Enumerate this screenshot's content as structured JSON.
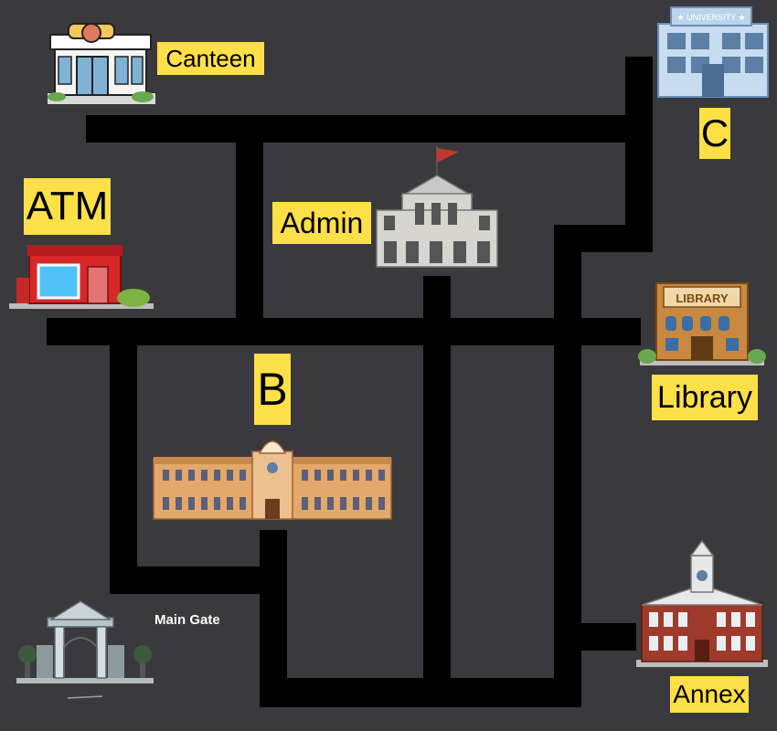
{
  "map": {
    "background": "#3a393d",
    "road_color": "#000000",
    "label_color": "#fde047"
  },
  "places": {
    "canteen": "Canteen",
    "atm": "ATM",
    "admin": "Admin",
    "university": "C",
    "library": "Library",
    "b_building": "B",
    "main_gate": "Main Gate",
    "annex": "Annex"
  },
  "signs": {
    "university_sign": "★ UNIVERSITY ★",
    "library_sign": "LIBRARY"
  }
}
